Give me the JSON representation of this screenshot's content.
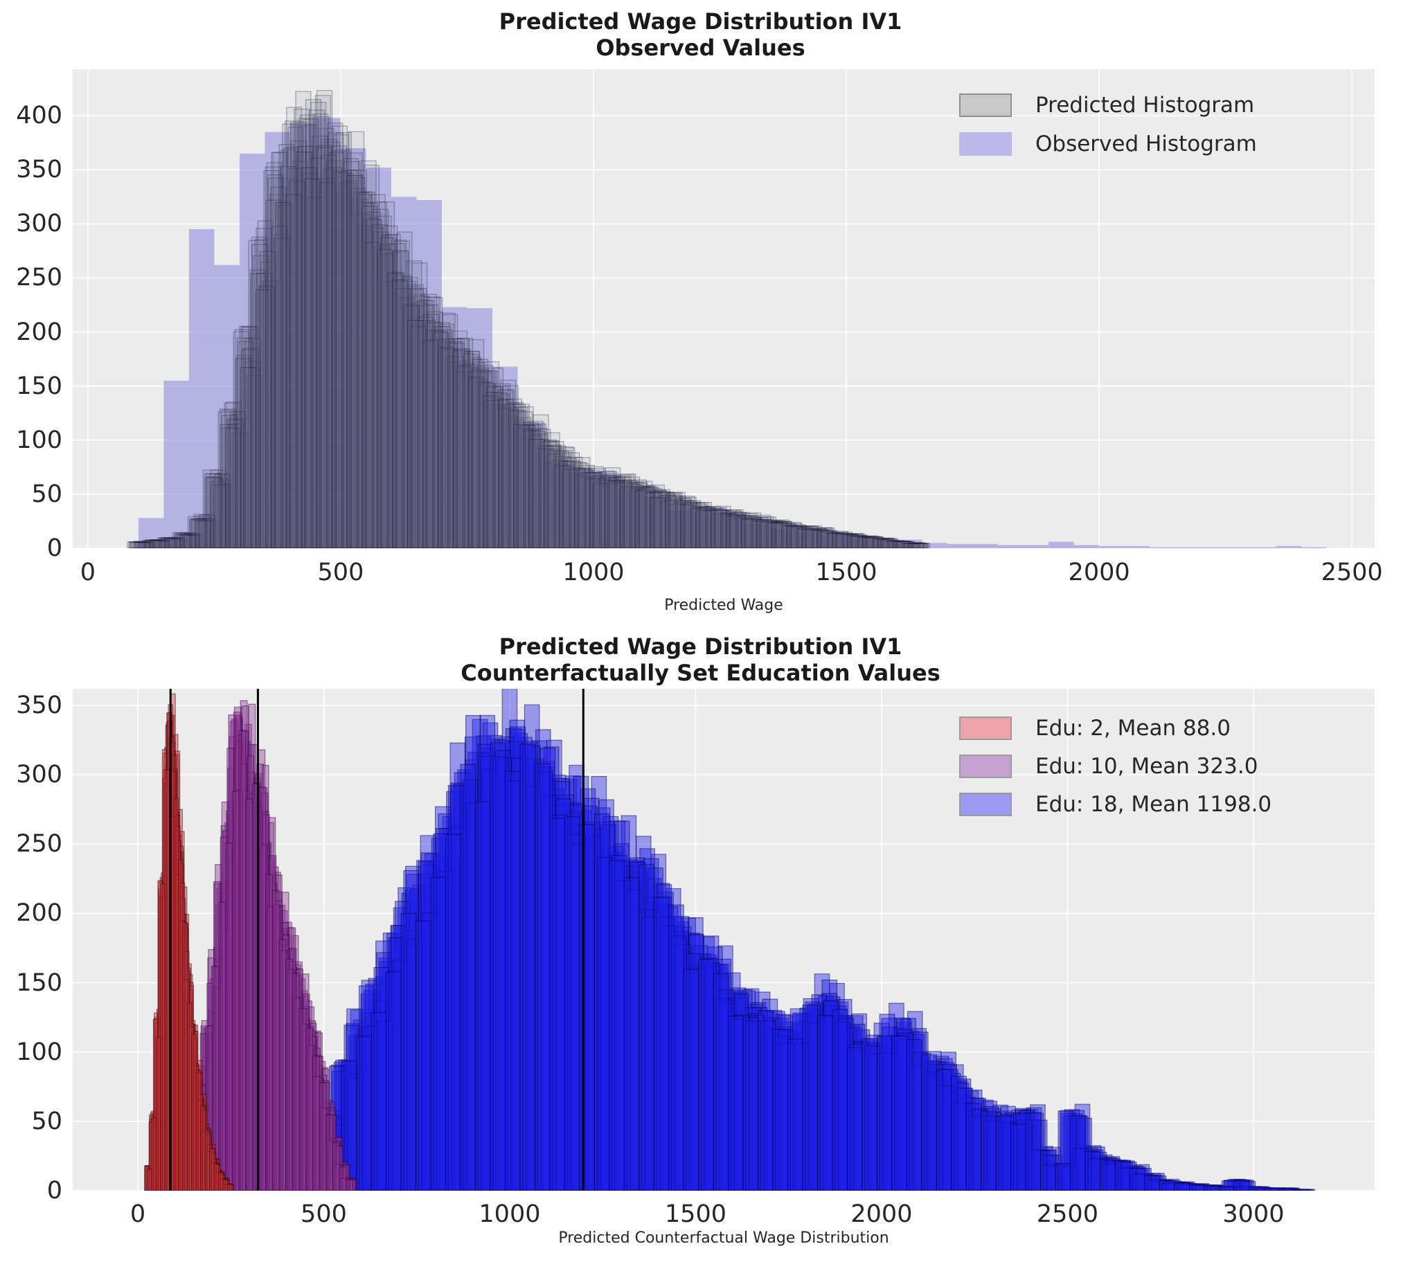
{
  "figure": {
    "background": "#ffffff",
    "plot_background": "#ececec",
    "grid_color": "#ffffff",
    "mean_line_color": "#000000"
  },
  "chart_data": [
    {
      "type": "histogram",
      "title_line1": "Predicted Wage Distribution IV1",
      "title_line2": "Observed Values",
      "xlabel": "Predicted Wage",
      "ylabel": "",
      "xlim": [
        -30,
        2545
      ],
      "ylim": [
        0,
        443
      ],
      "grid": true,
      "legend_position": "upper right",
      "x_ticks": [
        0,
        500,
        1000,
        1500,
        2000,
        2500
      ],
      "y_ticks": [
        0,
        50,
        100,
        150,
        200,
        250,
        300,
        350,
        400
      ],
      "legend": [
        {
          "label": "Predicted Histogram",
          "fill": "#c9c9c9",
          "border": "#8f8f8f"
        },
        {
          "label": "Observed Histogram",
          "fill": "#bcb9ea",
          "border": "#bcb9ea"
        }
      ],
      "series": [
        {
          "name": "Observed Histogram",
          "role": "observed",
          "bin_start": 100,
          "bin_width": 50,
          "counts": [
            28,
            155,
            295,
            262,
            365,
            385,
            393,
            398,
            370,
            352,
            325,
            322,
            223,
            222,
            168,
            115,
            80,
            72,
            70,
            55,
            48,
            35,
            33,
            32,
            22,
            18,
            15,
            12,
            10,
            8,
            8,
            5,
            4,
            4,
            3,
            3,
            6,
            3,
            2,
            2,
            1,
            1,
            1,
            1,
            1,
            2,
            1
          ],
          "fill": "rgba(124,121,216,0.50)",
          "stroke": "none"
        },
        {
          "name": "Predicted Histogram",
          "role": "runs",
          "bin_start": 90,
          "bin_width": 30,
          "base_counts": [
            6,
            8,
            10,
            14,
            30,
            70,
            130,
            200,
            290,
            355,
            390,
            408,
            405,
            390,
            368,
            340,
            310,
            285,
            255,
            230,
            212,
            200,
            185,
            165,
            150,
            135,
            120,
            105,
            90,
            80,
            72,
            70,
            66,
            62,
            56,
            50,
            46,
            42,
            38,
            35,
            32,
            29,
            26,
            23,
            20,
            18,
            15,
            13,
            11,
            9,
            7,
            5
          ],
          "runs": 16,
          "multipliers": [
            1.0,
            0.97,
            0.94,
            0.91,
            0.99,
            0.96,
            0.88,
            0.93,
            0.85,
            0.98,
            0.9,
            0.95,
            0.87,
            0.92,
            0.96,
            0.89
          ],
          "offsets": [
            0,
            6,
            -6,
            12,
            3,
            -9,
            9,
            -3,
            15,
            -12,
            4,
            -5,
            8,
            -8,
            11,
            2
          ],
          "jitter": 0.08,
          "seed": 7,
          "fill": "rgba(95,95,125,0.10)",
          "stroke": "rgba(25,25,55,0.35)"
        }
      ]
    },
    {
      "type": "histogram",
      "title_line1": "Predicted Wage Distribution IV1",
      "title_line2": "Counterfactually Set Education Values",
      "xlabel": "Predicted Counterfactual Wage Distribution",
      "ylabel": "",
      "xlim": [
        -175,
        3326
      ],
      "ylim": [
        0,
        362
      ],
      "grid": true,
      "legend_position": "upper right",
      "x_ticks": [
        0,
        500,
        1000,
        1500,
        2000,
        2500,
        3000
      ],
      "y_ticks": [
        0,
        50,
        100,
        150,
        200,
        250,
        300,
        350
      ],
      "legend": [
        {
          "label": "Edu: 2, Mean 88.0",
          "fill": "#eda3a9",
          "border": "#9a9a9a"
        },
        {
          "label": "Edu: 10, Mean 323.0",
          "fill": "#c7a0d2",
          "border": "#9a9a9a"
        },
        {
          "label": "Edu: 18, Mean 1198.0",
          "fill": "#9c99f2",
          "border": "#9a9a9a"
        }
      ],
      "series": [
        {
          "name": "Edu: 18, Mean 1198.0",
          "role": "runs",
          "mean": 1198,
          "bin_start": 420,
          "bin_width": 40,
          "base_counts": [
            4,
            10,
            55,
            95,
            130,
            150,
            185,
            205,
            230,
            255,
            285,
            315,
            332,
            340,
            338,
            340,
            330,
            318,
            300,
            290,
            278,
            262,
            252,
            240,
            228,
            210,
            190,
            183,
            174,
            150,
            142,
            136,
            130,
            122,
            138,
            145,
            140,
            122,
            116,
            114,
            126,
            124,
            100,
            94,
            86,
            70,
            62,
            58,
            56,
            58,
            30,
            20,
            60,
            32,
            25,
            22,
            18,
            12,
            8,
            6,
            5,
            4,
            3,
            8,
            3,
            2,
            2,
            1
          ],
          "runs": 12,
          "multipliers": [
            1.0,
            0.97,
            0.93,
            0.99,
            0.95,
            0.9,
            0.96,
            0.92,
            0.98,
            0.88,
            0.94,
            0.91
          ],
          "offsets": [
            0,
            10,
            -12,
            20,
            -20,
            5,
            -8,
            15,
            -18,
            25,
            -25,
            8
          ],
          "jitter": 0.08,
          "seed": 41,
          "fill": "rgba(30,30,230,0.42)",
          "stroke": "rgba(0,0,70,0.5)"
        },
        {
          "name": "Edu: 10, Mean 323.0",
          "role": "runs",
          "mean": 323,
          "bin_start": 108,
          "bin_width": 18,
          "base_counts": [
            8,
            22,
            48,
            85,
            125,
            170,
            225,
            285,
            330,
            345,
            332,
            312,
            300,
            262,
            232,
            205,
            188,
            172,
            152,
            132,
            112,
            90,
            62,
            38,
            20,
            9
          ],
          "runs": 12,
          "multipliers": [
            1.0,
            0.97,
            0.93,
            0.99,
            0.95,
            0.9,
            0.96,
            0.92,
            0.98,
            0.88,
            0.94,
            0.91
          ],
          "offsets": [
            0,
            6,
            -6,
            10,
            -10,
            4,
            -4,
            8,
            -8,
            12,
            -12,
            2
          ],
          "jitter": 0.07,
          "seed": 23,
          "fill": "rgba(140,55,150,0.40)",
          "stroke": "rgba(45,0,55,0.5)"
        },
        {
          "name": "Edu: 2, Mean 88.0",
          "role": "runs",
          "mean": 88,
          "bin_start": 24,
          "bin_width": 12,
          "base_counts": [
            18,
            55,
            130,
            230,
            325,
            345,
            308,
            258,
            205,
            160,
            122,
            92,
            66,
            46,
            32,
            22,
            14,
            9,
            5
          ],
          "runs": 12,
          "multipliers": [
            1.0,
            0.97,
            0.93,
            0.99,
            0.95,
            0.9,
            0.96,
            0.92,
            0.98,
            0.88,
            0.94,
            0.91
          ],
          "offsets": [
            0,
            3,
            -3,
            5,
            -5,
            2,
            -2,
            4,
            -4,
            6,
            -6,
            1
          ],
          "jitter": 0.07,
          "seed": 11,
          "fill": "rgba(200,55,60,0.42)",
          "stroke": "rgba(55,0,8,0.5)"
        }
      ]
    }
  ]
}
